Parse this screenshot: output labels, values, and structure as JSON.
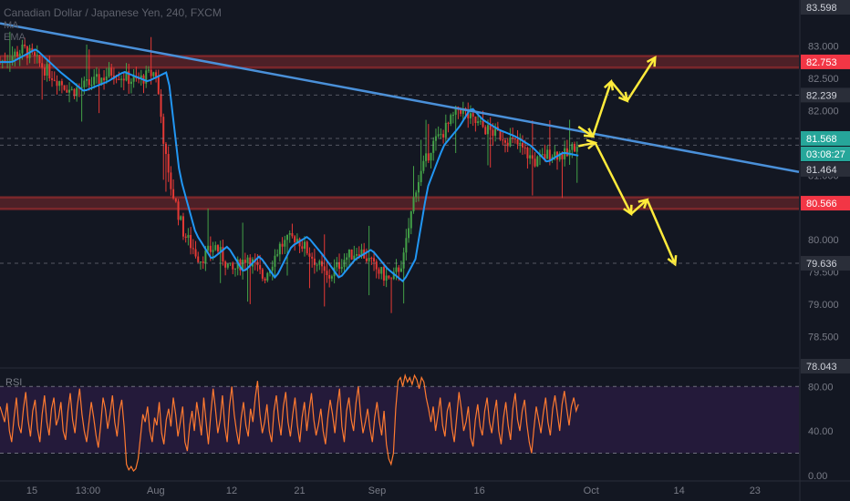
{
  "header": {
    "title": "Canadian Dollar / Japanese Yen, 240, FXCM",
    "ma": "MA",
    "ema": "EMA"
  },
  "rsi_label": "RSI",
  "colors": {
    "background": "#131722",
    "up": "#43a047",
    "down": "#e53935",
    "ma": "#2196f3",
    "trendline": "#4a90d9",
    "arrows": "#ffeb3b",
    "rsi": "#ff7a30",
    "rsi_band": "#241a3a",
    "resistance": "#e53935",
    "label_red": "#f23645",
    "label_green": "#26a69a"
  },
  "chart_data": [
    {
      "type": "candlestick",
      "title": "Canadian Dollar / Japanese Yen, 240, FXCM",
      "ylim": [
        78.043,
        83.598
      ],
      "y_ticks": [
        83.0,
        82.5,
        82.0,
        81.0,
        80.0,
        79.5,
        79.0,
        78.5
      ],
      "x_ticks": [
        "15",
        "13:00",
        "Aug",
        "12",
        "21",
        "Sep",
        "16",
        "Oct",
        "14",
        "23"
      ],
      "price_labels": [
        {
          "text": "83.598",
          "value": 83.598,
          "kind": "edge"
        },
        {
          "text": "82.753",
          "value": 82.753,
          "kind": "resistance"
        },
        {
          "text": "82.239",
          "value": 82.239,
          "kind": "level"
        },
        {
          "text": "81.568",
          "value": 81.568,
          "kind": "current"
        },
        {
          "text": "03:08:27",
          "value": 81.47,
          "kind": "countdown"
        },
        {
          "text": "81.464",
          "value": 81.464,
          "kind": "level"
        },
        {
          "text": "80.566",
          "value": 80.566,
          "kind": "resistance"
        },
        {
          "text": "79.636",
          "value": 79.636,
          "kind": "level"
        },
        {
          "text": "78.043",
          "value": 78.043,
          "kind": "edge"
        }
      ],
      "resistance_zones": [
        82.753,
        80.566
      ],
      "trendline": {
        "from": {
          "x": 0,
          "y": 83.35
        },
        "to": {
          "x": 100,
          "y": 81.05
        }
      },
      "price_path": [
        [
          0,
          82.75
        ],
        [
          3,
          82.95
        ],
        [
          6,
          82.6
        ],
        [
          9,
          82.3
        ],
        [
          12,
          82.45
        ],
        [
          14,
          82.6
        ],
        [
          17,
          82.45
        ],
        [
          19.5,
          82.6
        ],
        [
          21,
          81.0
        ],
        [
          23,
          80.1
        ],
        [
          25,
          79.7
        ],
        [
          27,
          79.9
        ],
        [
          29,
          79.5
        ],
        [
          31,
          79.75
        ],
        [
          33,
          79.4
        ],
        [
          35,
          79.9
        ],
        [
          37,
          80.05
        ],
        [
          39,
          79.75
        ],
        [
          41,
          79.4
        ],
        [
          43,
          79.7
        ],
        [
          45,
          79.85
        ],
        [
          47,
          79.55
        ],
        [
          49,
          79.35
        ],
        [
          50.5,
          79.7
        ],
        [
          52,
          80.8
        ],
        [
          54,
          81.45
        ],
        [
          56,
          81.75
        ],
        [
          57.5,
          82.05
        ],
        [
          59,
          81.85
        ],
        [
          61,
          81.7
        ],
        [
          63,
          81.6
        ],
        [
          65,
          81.45
        ],
        [
          67,
          81.2
        ],
        [
          69,
          81.35
        ],
        [
          71,
          81.3
        ],
        [
          72.4,
          81.55
        ]
      ],
      "ma_lag": 1.5,
      "projections": [
        {
          "name": "bullish",
          "points": [
            [
              72.4,
              81.75
            ],
            [
              74.2,
              81.6
            ],
            [
              76.5,
              82.45
            ],
            [
              78.5,
              82.15
            ],
            [
              82,
              82.82
            ]
          ]
        },
        {
          "name": "bearish",
          "points": [
            [
              72.4,
              81.45
            ],
            [
              74.5,
              81.5
            ],
            [
              79,
              80.4
            ],
            [
              81,
              80.62
            ],
            [
              84.5,
              79.62
            ]
          ]
        }
      ]
    },
    {
      "type": "line",
      "title": "RSI",
      "ylim": [
        -5,
        95
      ],
      "y_ticks": [
        80.0,
        40.0,
        0.0
      ],
      "bands": [
        80,
        20
      ],
      "series": [
        {
          "values": [
            62,
            55,
            48,
            65,
            40,
            30,
            52,
            70,
            45,
            38,
            60,
            75,
            50,
            35,
            58,
            68,
            42,
            30,
            55,
            72,
            48,
            36,
            60,
            70,
            45,
            52,
            66,
            40,
            32,
            58,
            74,
            50,
            38,
            62,
            78,
            55,
            40,
            30,
            48,
            66,
            52,
            36,
            25,
            45,
            70,
            60,
            42,
            55,
            72,
            48,
            35,
            58,
            68,
            44,
            10,
            5,
            8,
            4,
            6,
            15,
            35,
            55,
            48,
            62,
            40,
            30,
            52,
            45,
            66,
            38,
            28,
            50,
            60,
            44,
            70,
            55,
            35,
            48,
            62,
            30,
            22,
            45,
            58,
            40,
            66,
            52,
            36,
            70,
            48,
            28,
            55,
            78,
            60,
            38,
            50,
            72,
            44,
            30,
            62,
            80,
            55,
            40,
            28,
            52,
            66,
            45,
            35,
            60,
            48,
            70,
            85,
            55,
            38,
            48,
            64,
            40,
            30,
            58,
            72,
            50,
            36,
            62,
            75,
            48,
            35,
            55,
            70,
            45,
            30,
            52,
            66,
            40,
            58,
            74,
            50,
            36,
            46,
            60,
            40,
            28,
            52,
            68,
            55,
            38,
            62,
            78,
            44,
            30,
            58,
            70,
            50,
            40,
            65,
            80,
            55,
            38,
            48,
            60,
            42,
            30,
            52,
            66,
            48,
            36,
            58,
            28,
            15,
            10,
            20,
            60,
            85,
            88,
            80,
            90,
            84,
            88,
            82,
            90,
            86,
            78,
            88,
            84,
            70,
            60,
            48,
            62,
            40,
            55,
            70,
            45,
            35,
            58,
            66,
            42,
            30,
            52,
            75,
            60,
            40,
            48,
            62,
            34,
            26,
            50,
            64,
            44,
            36,
            58,
            70,
            48,
            38,
            55,
            68,
            40,
            28,
            52,
            66,
            45,
            32,
            60,
            74,
            50,
            40,
            58,
            68,
            46,
            30,
            20,
            42,
            62,
            50,
            38,
            56,
            70,
            48,
            36,
            60,
            72,
            56,
            40,
            64,
            76,
            60,
            45,
            62,
            70,
            58,
            64
          ]
        }
      ]
    }
  ]
}
